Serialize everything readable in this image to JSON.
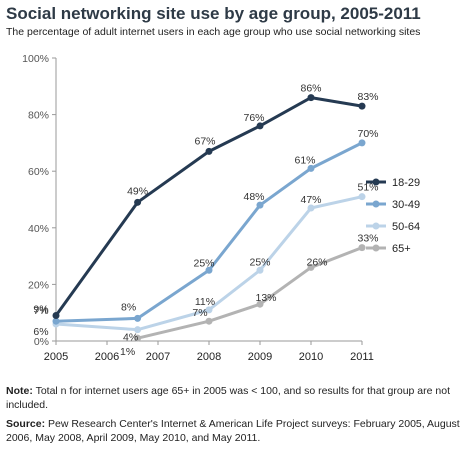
{
  "chart_data": {
    "type": "line",
    "title": "Social networking site use by age group, 2005-2011",
    "subtitle": "The percentage of adult internet users in each age group who use social networking sites",
    "x": [
      2005,
      2006.6,
      2008,
      2009,
      2010,
      2011
    ],
    "x_tick_labels": [
      "2005",
      "2006",
      "2007",
      "2008",
      "2009",
      "2010",
      "2011"
    ],
    "x_tick_values": [
      2005,
      2006,
      2007,
      2008,
      2009,
      2010,
      2011
    ],
    "y_ticks": [
      "0%",
      "20%",
      "40%",
      "60%",
      "80%",
      "100%"
    ],
    "y_tick_values": [
      0,
      20,
      40,
      60,
      80,
      100
    ],
    "ylim": [
      0,
      100
    ],
    "legend_position": "right",
    "grid": false,
    "series": [
      {
        "name": "18-29",
        "color": "#253a52",
        "values": [
          9,
          49,
          67,
          76,
          86,
          83
        ],
        "labels": [
          "9%",
          "49%",
          "67%",
          "76%",
          "86%",
          "83%"
        ]
      },
      {
        "name": "30-49",
        "color": "#7aa6cf",
        "values": [
          7,
          8,
          25,
          48,
          61,
          70
        ],
        "labels": [
          "7%",
          "8%",
          "25%",
          "48%",
          "61%",
          "70%"
        ]
      },
      {
        "name": "50-64",
        "color": "#bcd3e8",
        "values": [
          6,
          4,
          11,
          25,
          47,
          51
        ],
        "labels": [
          "6%",
          "4%",
          "11%",
          "25%",
          "47%",
          "51%"
        ]
      },
      {
        "name": "65+",
        "color": "#b3b3b3",
        "values": [
          null,
          1,
          7,
          13,
          26,
          33
        ],
        "labels": [
          "",
          "1%",
          "7%",
          "13%",
          "26%",
          "33%"
        ]
      }
    ]
  },
  "note": {
    "label": "Note:",
    "text": " Total n for internet users age 65+ in 2005 was < 100, and so results for that group are not included."
  },
  "source": {
    "label": "Source:",
    "text": " Pew Research Center's Internet & American Life Project surveys: February 2005, August 2006, May 2008, April 2009, May 2010, and May 2011."
  }
}
